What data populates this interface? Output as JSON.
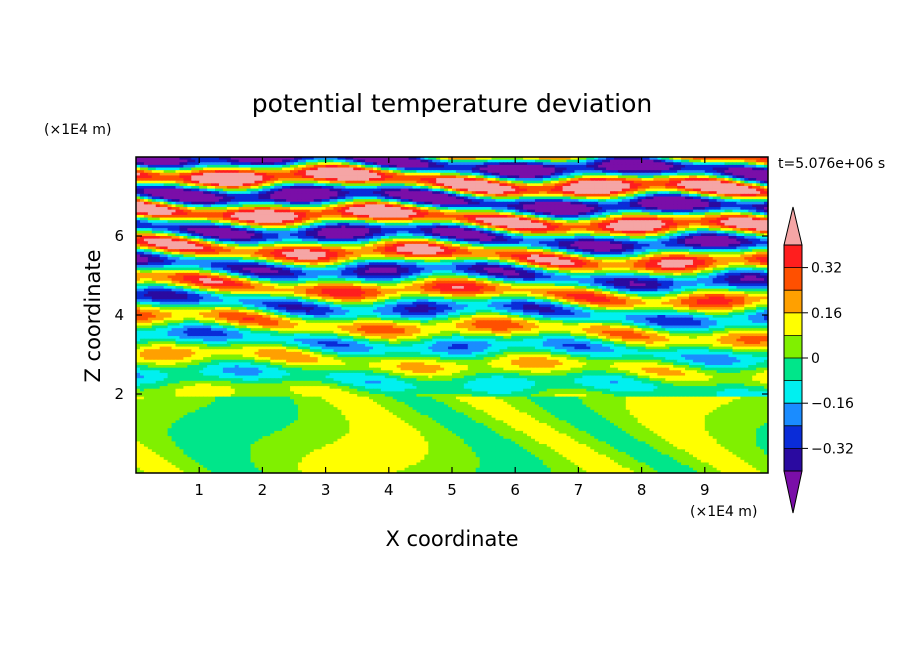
{
  "chart_data": {
    "type": "heatmap",
    "title": "potential temperature deviation",
    "time_label": "t=5.076e+06 s",
    "xlabel": "X coordinate",
    "ylabel": "Z coordinate",
    "x_unit": "(×1E4 m)",
    "y_unit": "(×1E4 m)",
    "x_ticks": [
      1,
      2,
      3,
      4,
      5,
      6,
      7,
      8,
      9
    ],
    "y_ticks": [
      2,
      4,
      6
    ],
    "xlim": [
      0,
      10
    ],
    "ylim": [
      0,
      8
    ],
    "colorbar": {
      "levels": [
        -0.4,
        -0.32,
        -0.24,
        -0.16,
        -0.08,
        0,
        0.08,
        0.16,
        0.24,
        0.32,
        0.4
      ],
      "tick_labels": [
        "0.32",
        "0.16",
        "0",
        "−0.16",
        "−0.32"
      ],
      "tick_values": [
        0.32,
        0.16,
        0,
        -0.16,
        -0.32
      ],
      "colors": [
        "#7a0ea8",
        "#2a0aa0",
        "#0a2cd8",
        "#1a8cff",
        "#00f0f0",
        "#00e68a",
        "#80f000",
        "#ffff00",
        "#ffa000",
        "#ff5000",
        "#ff1e1e",
        "#f5a5a5"
      ],
      "extend": "both"
    }
  }
}
